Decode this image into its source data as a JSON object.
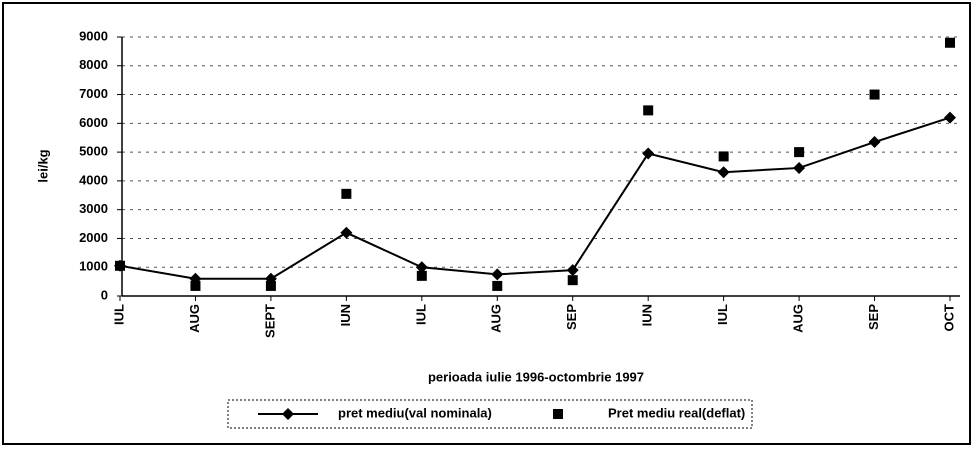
{
  "chart_data": {
    "type": "line",
    "y_label": "lei/kg",
    "x_label": "perioada iulie 1996-octombrie 1997",
    "categories": [
      "IUL",
      "AUG",
      "SEPT",
      "IUN",
      "IUL",
      "AUG",
      "SEP",
      "IUN",
      "IUL",
      "AUG",
      "SEP",
      "OCT"
    ],
    "series": [
      {
        "name": "pret mediu(val nominala)",
        "color": "#000000",
        "style": "line-markers",
        "values": [
          1050,
          600,
          600,
          2200,
          1000,
          750,
          900,
          4950,
          4300,
          4450,
          5350,
          6200
        ]
      },
      {
        "name": "Pret mediu real(deflat)",
        "color": "#000000",
        "style": "markers",
        "values": [
          1050,
          350,
          350,
          3550,
          700,
          350,
          550,
          6450,
          4850,
          5000,
          7000,
          8800
        ]
      }
    ],
    "ylim": [
      0,
      9000
    ],
    "yticks": [
      0,
      1000,
      2000,
      3000,
      4000,
      5000,
      6000,
      7000,
      8000,
      9000
    ],
    "grid": true,
    "legend": "bottom"
  }
}
